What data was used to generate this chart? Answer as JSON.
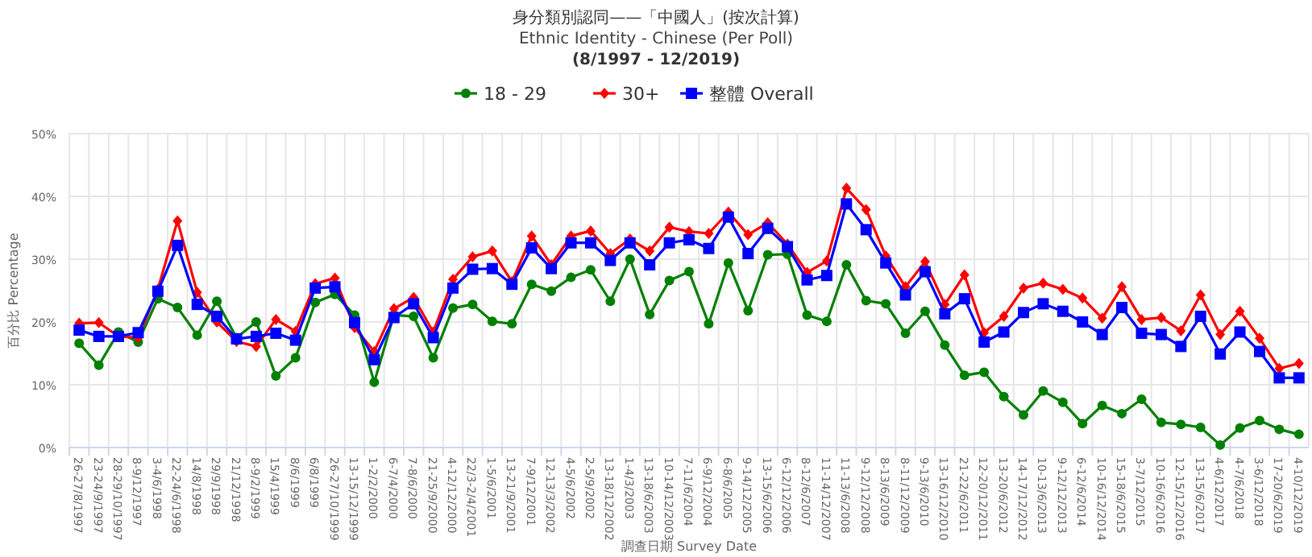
{
  "chart_data": {
    "type": "line",
    "title": "身分類別認同——「中國人」(按次計算)",
    "subtitle": "Ethnic Identity - Chinese (Per Poll)",
    "annotations": [
      "(8/1997 - 12/2019)"
    ],
    "xlabel": "調查日期 Survey Date",
    "ylabel": "百分比 Percentage",
    "categories": [
      "26-27/8/1997",
      "23-24/9/1997",
      "28-29/10/1997",
      "8-9/12/1997",
      "3-4/6/1998",
      "22-24/6/1998",
      "14/8/1998",
      "29/9/1998",
      "21/12/1998",
      "8-9/2/1999",
      "15/4/1999",
      "8/6/1999",
      "6/8/1999",
      "26-27/10/1999",
      "13-15/12/1999",
      "1-2/2/2000",
      "6-7/4/2000",
      "7-8/6/2000",
      "21-25/9/2000",
      "4-12/12/2000",
      "22/3-2/4/2001",
      "1-5/6/2001",
      "13-21/9/2001",
      "7-9/12/2001",
      "12-13/3/2002",
      "4-5/6/2002",
      "2-5/9/2002",
      "13-18/12/2002",
      "1-4/3/2003",
      "13-18/6/2003",
      "10-14/12/2003",
      "7-11/6/2004",
      "6-9/12/2004",
      "6-8/6/2005",
      "9-14/12/2005",
      "13-15/6/2006",
      "6-12/12/2006",
      "8-12/6/2007",
      "11-14/12/2007",
      "11-13/6/2008",
      "9-12/12/2008",
      "8-13/6/2009",
      "8-11/12/2009",
      "9-13/6/2010",
      "13-16/12/2010",
      "21-22/6/2011",
      "12-20/12/2011",
      "13-20/6/2012",
      "14-17/12/2012",
      "10-13/6/2013",
      "9-12/12/2013",
      "6-12/6/2014",
      "10-16/12/2014",
      "15-18/6/2015",
      "3-7/12/2015",
      "10-16/6/2016",
      "12-15/12/2016",
      "13-15/6/2017",
      "4-6/12/2017",
      "4-7/6/2018",
      "3-6/12/2018",
      "17-20/6/2019",
      "4-10/12/2019"
    ],
    "series": [
      {
        "name": "18 - 29",
        "color": "#008000",
        "marker": "circle",
        "values": [
          16.6,
          13.1,
          18.4,
          16.8,
          23.7,
          22.3,
          17.9,
          23.3,
          17.5,
          20.0,
          11.4,
          14.3,
          23.1,
          24.4,
          21.1,
          10.4,
          21.1,
          20.9,
          14.3,
          22.2,
          22.8,
          20.1,
          19.7,
          26.0,
          24.9,
          27.1,
          28.3,
          23.3,
          30.0,
          21.2,
          26.6,
          28.0,
          19.7,
          29.4,
          21.8,
          30.7,
          30.8,
          21.1,
          20.1,
          29.1,
          23.4,
          22.9,
          18.2,
          21.7,
          16.3,
          11.5,
          12.0,
          8.1,
          5.2,
          9.0,
          7.2,
          3.8,
          6.7,
          5.4,
          7.7,
          4.0,
          3.7,
          3.2,
          0.4,
          3.1,
          4.3,
          2.9,
          2.1
        ]
      },
      {
        "name": "30+",
        "color": "#ff0000",
        "marker": "diamond",
        "values": [
          19.8,
          19.9,
          17.7,
          17.5,
          25.2,
          36.1,
          24.7,
          20.0,
          16.9,
          16.1,
          20.4,
          18.5,
          26.1,
          27.0,
          19.1,
          15.3,
          22.1,
          23.9,
          18.4,
          26.8,
          30.4,
          31.3,
          26.4,
          33.7,
          29.1,
          33.7,
          34.5,
          30.9,
          33.2,
          31.3,
          35.1,
          34.4,
          34.1,
          37.5,
          33.9,
          35.8,
          32.4,
          27.9,
          29.7,
          41.3,
          37.9,
          30.5,
          25.6,
          29.6,
          22.8,
          27.5,
          18.3,
          20.9,
          25.4,
          26.2,
          25.2,
          23.8,
          20.6,
          25.6,
          20.4,
          20.7,
          18.6,
          24.3,
          18.0,
          21.7,
          17.4,
          12.6,
          13.4
        ]
      },
      {
        "name": "整體 Overall",
        "color": "#0000ff",
        "marker": "square",
        "values": [
          18.7,
          17.7,
          17.7,
          18.3,
          24.9,
          32.2,
          22.8,
          20.9,
          17.3,
          17.7,
          18.2,
          17.1,
          25.4,
          25.6,
          19.9,
          14.0,
          20.7,
          22.9,
          17.5,
          25.4,
          28.4,
          28.5,
          26.0,
          31.8,
          28.5,
          32.6,
          32.6,
          29.8,
          32.6,
          29.1,
          32.6,
          33.1,
          31.7,
          36.7,
          30.9,
          34.9,
          32.0,
          26.7,
          27.4,
          38.8,
          34.7,
          29.4,
          24.3,
          28.0,
          21.3,
          23.7,
          16.8,
          18.4,
          21.5,
          22.9,
          21.7,
          20.0,
          18.0,
          22.3,
          18.2,
          18.0,
          16.1,
          20.9,
          14.9,
          18.4,
          15.3,
          11.1,
          11.1
        ]
      }
    ],
    "ylim": [
      0,
      50
    ],
    "yticks": [
      {
        "value": 0,
        "label": "0%"
      },
      {
        "value": 10,
        "label": "10%"
      },
      {
        "value": 20,
        "label": "20%"
      },
      {
        "value": 30,
        "label": "30%"
      },
      {
        "value": 40,
        "label": "40%"
      },
      {
        "value": 50,
        "label": "50%"
      }
    ],
    "grid": true,
    "legend": "top",
    "line_style": "solid"
  }
}
